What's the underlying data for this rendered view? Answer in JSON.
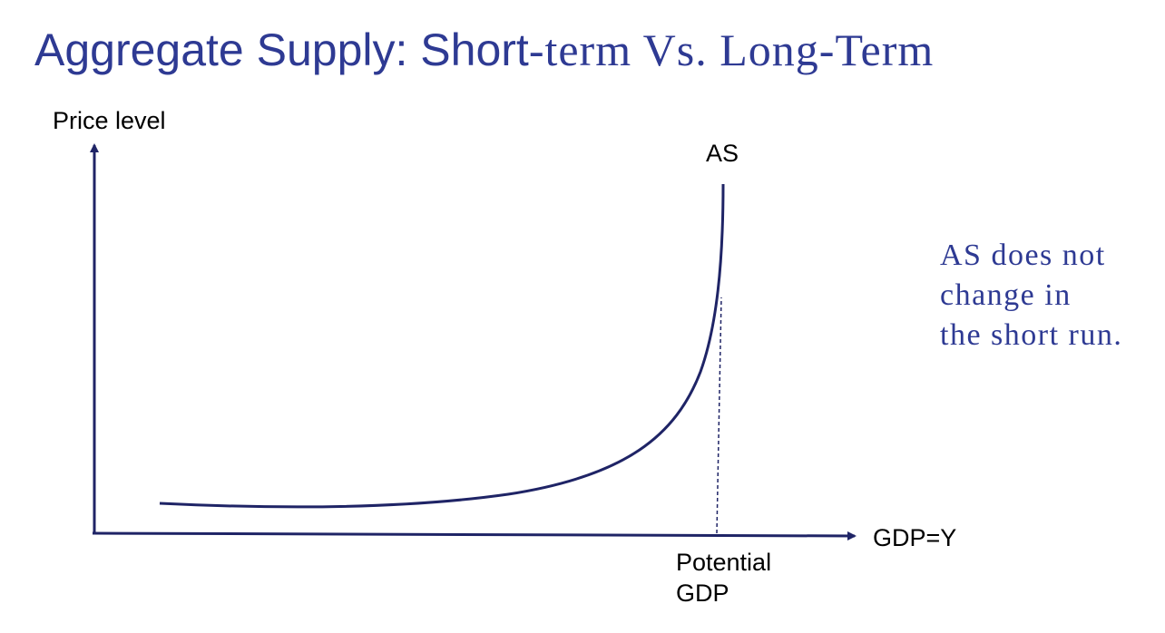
{
  "slide": {
    "title_sans_part": "Aggregate Supply: Short",
    "title_serif_part": "-term Vs. Long-Term"
  },
  "diagram": {
    "y_axis_label": "Price level",
    "x_axis_label": "GDP=Y",
    "curve_label": "AS",
    "marker_label_line1": "Potential",
    "marker_label_line2": "GDP"
  },
  "note": {
    "line1": "AS does not",
    "line2": "change in",
    "line3": "the short run."
  },
  "colors": {
    "title": "#2e3a93",
    "curve": "#1f2466",
    "axes": "#1f2466",
    "note": "#2e3a93"
  }
}
